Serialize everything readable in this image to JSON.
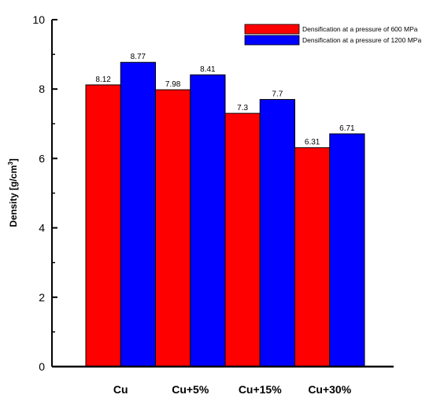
{
  "chart_data": {
    "type": "bar",
    "title": "",
    "xlabel": "",
    "ylabel": "Density [g/cm",
    "ylabel_sup": "3",
    "ylabel_end": "]",
    "ylim": [
      0,
      10
    ],
    "yticks": [
      0,
      2,
      4,
      6,
      8,
      10
    ],
    "ytick_labels": [
      "0",
      "2",
      "4",
      "6",
      "8",
      "10"
    ],
    "categories": [
      "Cu",
      "Cu+5%",
      "Cu+15%",
      "Cu+30%"
    ],
    "series": [
      {
        "name": "Densification at a pressure of 600 MPa",
        "color": "#ff0000",
        "values": [
          8.12,
          7.98,
          7.3,
          6.31
        ],
        "labels": [
          "8.12",
          "7.98",
          "7.3",
          "6.31"
        ]
      },
      {
        "name": "Densification at a pressure of 1200 MPa",
        "color": "#0000ff",
        "values": [
          8.77,
          8.41,
          7.7,
          6.71
        ],
        "labels": [
          "8.77",
          "8.41",
          "7.7",
          "6.71"
        ]
      }
    ],
    "legend_position": "top-right",
    "grid": false
  }
}
